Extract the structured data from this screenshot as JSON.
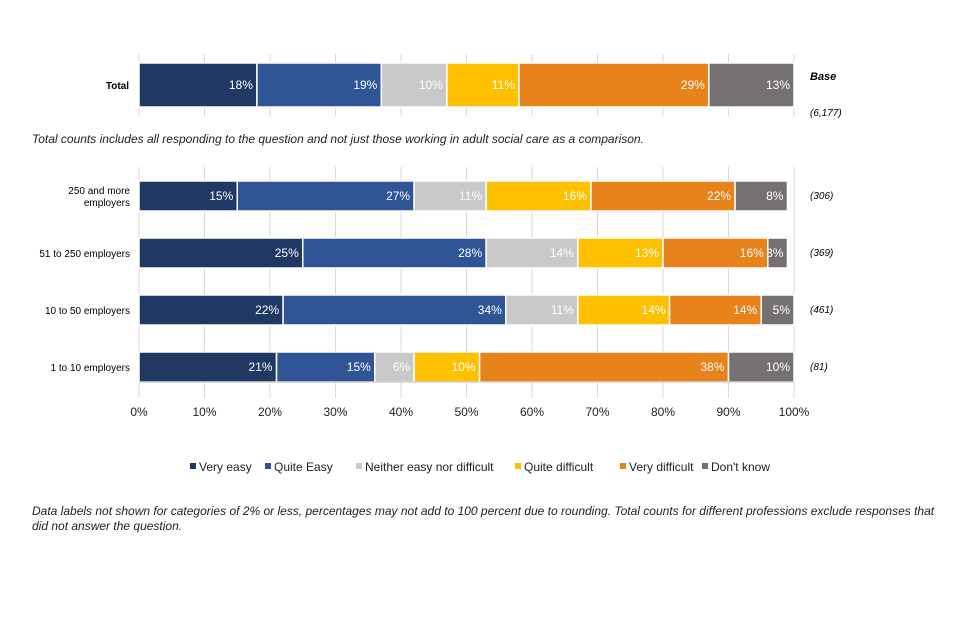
{
  "chart_data": {
    "type": "bar",
    "stacked": true,
    "orientation": "horizontal",
    "colors": [
      "#1f3864",
      "#2f5597",
      "#c9c9c9",
      "#ffc000",
      "#e8821a",
      "#767171"
    ],
    "legend_position": "bottom",
    "legend": [
      "Very easy",
      "Quite Easy",
      "Neither easy nor difficult",
      "Quite difficult",
      "Very difficult",
      "Don't know"
    ],
    "base_header": "Base",
    "total_bar": {
      "category": "Total",
      "values": [
        18,
        19,
        10,
        11,
        29,
        13
      ],
      "labels": [
        "18%",
        "19%",
        "10%",
        "11%",
        "29%",
        "13%"
      ],
      "base": "(6,177)"
    },
    "categories": [
      "250 and more employers",
      "51 to 250 employers",
      "10 to 50 employers",
      "1 to 10 employers"
    ],
    "category_lines": [
      [
        "250 and more",
        "employers"
      ],
      [
        "51 to 250 employers"
      ],
      [
        "10 to 50 employers"
      ],
      [
        "1 to 10 employers"
      ]
    ],
    "series": [
      {
        "name": "Very easy",
        "values": [
          15,
          25,
          22,
          21
        ],
        "labels": [
          "15%",
          "25%",
          "22%",
          "21%"
        ]
      },
      {
        "name": "Quite Easy",
        "values": [
          27,
          28,
          34,
          15
        ],
        "labels": [
          "27%",
          "28%",
          "34%",
          "15%"
        ]
      },
      {
        "name": "Neither easy nor difficult",
        "values": [
          11,
          14,
          11,
          6
        ],
        "labels": [
          "11%",
          "14%",
          "11%",
          "6%"
        ]
      },
      {
        "name": "Quite difficult",
        "values": [
          16,
          13,
          14,
          10
        ],
        "labels": [
          "16%",
          "13%",
          "14%",
          "10%"
        ]
      },
      {
        "name": "Very difficult",
        "values": [
          22,
          16,
          14,
          38
        ],
        "labels": [
          "22%",
          "16%",
          "14%",
          "38%"
        ]
      },
      {
        "name": "Don't know",
        "values": [
          8,
          3,
          5,
          10
        ],
        "labels": [
          "8%",
          "3%",
          "5%",
          "10%"
        ]
      }
    ],
    "bases": [
      "(306)",
      "(369)",
      "(461)",
      "(81)"
    ],
    "xlim": [
      0,
      100
    ],
    "x_ticks": [
      "0%",
      "10%",
      "20%",
      "30%",
      "40%",
      "50%",
      "60%",
      "70%",
      "80%",
      "90%",
      "100%"
    ],
    "grid": true
  },
  "notes": {
    "total_note": "Total counts includes all responding to the question and not just those working in adult social care as a comparison.",
    "footer_note_line1": "Data labels not shown for categories of 2% or less, percentages may not add to 100 percent due to rounding. Total counts for different professions exclude responses that",
    "footer_note_line2": "did not answer the question."
  }
}
